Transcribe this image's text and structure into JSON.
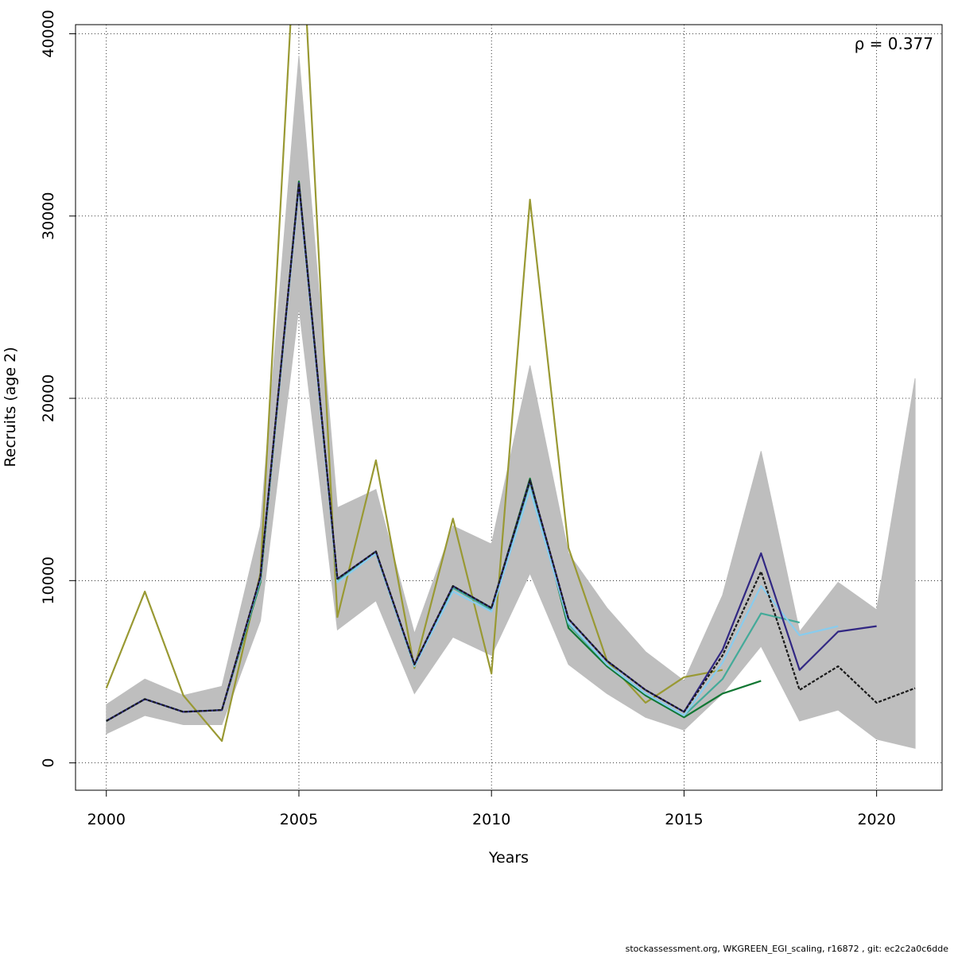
{
  "chart_data": {
    "type": "line",
    "xlabel": "Years",
    "ylabel": "Recruits (age 2)",
    "xlim": [
      1999.2,
      2021.7
    ],
    "ylim": [
      -1500,
      40500
    ],
    "xticks": [
      2000,
      2005,
      2010,
      2015,
      2020
    ],
    "yticks": [
      0,
      10000,
      20000,
      30000,
      40000
    ],
    "xtick_labels": [
      "2000",
      "2005",
      "2010",
      "2015",
      "2020"
    ],
    "ytick_labels": [
      "0",
      "10000",
      "20000",
      "30000",
      "40000"
    ],
    "grid": true,
    "annotation": "ρ = 0.377",
    "footer": "stockassessment.org, WKGREEN_EGI_scaling, r16872 , git: ec2c2a0c6dde",
    "band": {
      "x": [
        2000,
        2001,
        2002,
        2003,
        2004,
        2005,
        2006,
        2007,
        2008,
        2009,
        2010,
        2011,
        2012,
        2013,
        2014,
        2015,
        2016,
        2017,
        2018,
        2019,
        2020,
        2021
      ],
      "upper": [
        3200,
        4600,
        3700,
        4200,
        13000,
        38800,
        14000,
        15000,
        7100,
        13000,
        12000,
        21800,
        11500,
        8500,
        6100,
        4500,
        9200,
        17100,
        7200,
        9900,
        8400,
        21100
      ],
      "lower": [
        1600,
        2600,
        2100,
        2100,
        7800,
        25000,
        7300,
        8900,
        3800,
        6900,
        5900,
        10400,
        5400,
        3800,
        2500,
        1800,
        3800,
        6400,
        2300,
        2900,
        1300,
        800
      ],
      "color": "#bebebe"
    },
    "series": [
      {
        "color": "#1a1a1a",
        "dashed": true,
        "width": 2.2,
        "x": [
          2000,
          2001,
          2002,
          2003,
          2004,
          2005,
          2006,
          2007,
          2008,
          2009,
          2010,
          2011,
          2012,
          2013,
          2014,
          2015,
          2016,
          2017,
          2018,
          2019,
          2020,
          2021
        ],
        "y": [
          2300,
          3500,
          2800,
          2900,
          10200,
          31800,
          10100,
          11600,
          5400,
          9700,
          8500,
          15500,
          7900,
          5600,
          4000,
          2800,
          5900,
          10500,
          4000,
          5300,
          3300,
          4100
        ]
      },
      {
        "color": "#312783",
        "dashed": false,
        "width": 2.2,
        "x": [
          2000,
          2001,
          2002,
          2003,
          2004,
          2005,
          2006,
          2007,
          2008,
          2009,
          2010,
          2011,
          2012,
          2013,
          2014,
          2015,
          2016,
          2017,
          2018,
          2019,
          2020
        ],
        "y": [
          2300,
          3500,
          2800,
          2900,
          10200,
          31800,
          10100,
          11600,
          5400,
          9700,
          8500,
          15500,
          7900,
          5600,
          4000,
          2800,
          6200,
          11500,
          5100,
          7200,
          7500
        ]
      },
      {
        "color": "#88ccee",
        "dashed": false,
        "width": 2.2,
        "x": [
          2000,
          2001,
          2002,
          2003,
          2004,
          2005,
          2006,
          2007,
          2008,
          2009,
          2010,
          2011,
          2012,
          2013,
          2014,
          2015,
          2016,
          2017,
          2018,
          2019
        ],
        "y": [
          2300,
          3500,
          2800,
          2900,
          10100,
          31600,
          9900,
          11500,
          5300,
          9400,
          8300,
          15000,
          7700,
          5400,
          3800,
          2600,
          5500,
          9700,
          7000,
          7500
        ]
      },
      {
        "color": "#44aa99",
        "dashed": false,
        "width": 2.2,
        "x": [
          2000,
          2001,
          2002,
          2003,
          2004,
          2005,
          2006,
          2007,
          2008,
          2009,
          2010,
          2011,
          2012,
          2013,
          2014,
          2015,
          2016,
          2017,
          2018
        ],
        "y": [
          2300,
          3500,
          2800,
          2900,
          10000,
          31700,
          10000,
          11500,
          5300,
          9600,
          8400,
          15400,
          7600,
          5400,
          3800,
          2600,
          4600,
          8200,
          7700
        ]
      },
      {
        "color": "#117733",
        "dashed": false,
        "width": 2.2,
        "x": [
          2000,
          2001,
          2002,
          2003,
          2004,
          2005,
          2006,
          2007,
          2008,
          2009,
          2010,
          2011,
          2012,
          2013,
          2014,
          2015,
          2016,
          2017
        ],
        "y": [
          2300,
          3500,
          2800,
          2900,
          9900,
          31900,
          10000,
          11600,
          5300,
          9700,
          8500,
          15600,
          7400,
          5300,
          3700,
          2500,
          3800,
          4500
        ]
      },
      {
        "color": "#999933",
        "dashed": false,
        "width": 2.2,
        "x": [
          2000,
          2001,
          2002,
          2003,
          2004,
          2005,
          2006,
          2007,
          2008,
          2009,
          2010,
          2011,
          2012,
          2013,
          2014,
          2015,
          2016
        ],
        "y": [
          4100,
          9400,
          3700,
          1200,
          10400,
          49000,
          8000,
          16600,
          5200,
          13400,
          4900,
          30900,
          11800,
          5600,
          3300,
          4700,
          5100
        ]
      }
    ]
  }
}
